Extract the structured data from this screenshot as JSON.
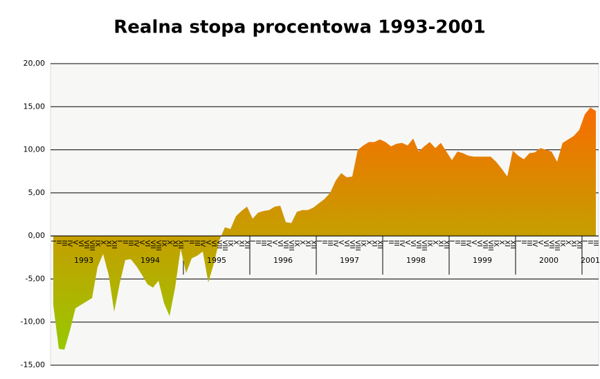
{
  "chart_data": {
    "type": "area",
    "title": "Realna stopa procentowa 1993-2001",
    "categories": [
      "I",
      "II",
      "III",
      "IV",
      "V",
      "VI",
      "VII",
      "VIII",
      "IX",
      "X",
      "XI",
      "XII",
      "I",
      "II",
      "III",
      "IV",
      "V",
      "VI",
      "VII",
      "VIII",
      "IX",
      "X",
      "XI",
      "XII",
      "I",
      "II",
      "III",
      "IV",
      "V",
      "VI",
      "VII",
      "VIII",
      "IX",
      "X",
      "XI",
      "XII",
      "I",
      "II",
      "III",
      "IV",
      "V",
      "VI",
      "VII",
      "VIII",
      "IX",
      "X",
      "XI",
      "XII",
      "I",
      "II",
      "III",
      "IV",
      "V",
      "VI",
      "VII",
      "VIII",
      "IX",
      "X",
      "XI",
      "XII",
      "I",
      "II",
      "III",
      "IV",
      "V",
      "VI",
      "VII",
      "VIII",
      "IX",
      "X",
      "XI",
      "XII",
      "I",
      "II",
      "III",
      "IV",
      "V",
      "VI",
      "VII",
      "VIII",
      "IX",
      "X",
      "XI",
      "XII",
      "I",
      "II",
      "III",
      "IV",
      "V",
      "VI",
      "VII",
      "VIII",
      "IX",
      "X",
      "XI",
      "XII",
      "I",
      "II",
      "III"
    ],
    "years": [
      "1993",
      "1994",
      "1995",
      "1996",
      "1997",
      "1998",
      "1999",
      "2000",
      "2001"
    ],
    "values": [
      -8.0,
      -13.1,
      -13.2,
      -11.0,
      -8.4,
      -8.0,
      -7.6,
      -7.2,
      -3.6,
      -2.1,
      -4.5,
      -8.8,
      -5.5,
      -2.8,
      -2.7,
      -3.5,
      -4.5,
      -5.6,
      -6.0,
      -5.2,
      -7.8,
      -9.3,
      -6.0,
      -1.5,
      -4.3,
      -2.6,
      -2.3,
      -1.8,
      -5.4,
      -3.2,
      -0.5,
      1.0,
      0.8,
      2.3,
      2.9,
      3.4,
      2.0,
      2.7,
      2.9,
      3.0,
      3.4,
      3.5,
      1.6,
      1.5,
      2.8,
      3.0,
      3.0,
      3.3,
      3.8,
      4.3,
      5.0,
      6.4,
      7.3,
      6.8,
      6.9,
      10.0,
      10.5,
      10.9,
      10.9,
      11.2,
      10.9,
      10.4,
      10.7,
      10.8,
      10.5,
      11.3,
      9.8,
      10.4,
      10.9,
      10.2,
      10.8,
      9.8,
      8.8,
      9.8,
      9.6,
      9.3,
      9.2,
      9.2,
      9.2,
      9.2,
      8.6,
      7.8,
      6.9,
      9.9,
      9.3,
      8.9,
      9.6,
      9.7,
      10.2,
      10.0,
      9.8,
      8.6,
      10.8,
      11.2,
      11.6,
      12.3,
      14.1,
      14.9,
      14.5
    ],
    "gradient": [
      "#98c800",
      "#c89c00",
      "#f86c00"
    ],
    "ylim": [
      -15,
      20
    ],
    "yticks": [
      {
        "value": -15,
        "label": "-15,00"
      },
      {
        "value": -10,
        "label": "-10,00"
      },
      {
        "value": -5,
        "label": "-5,00"
      },
      {
        "value": 0,
        "label": "0,00"
      },
      {
        "value": 5,
        "label": "5,00"
      },
      {
        "value": 10,
        "label": "10,00"
      },
      {
        "value": 15,
        "label": "15,00"
      },
      {
        "value": 20,
        "label": "20,00"
      }
    ],
    "grid": true
  }
}
